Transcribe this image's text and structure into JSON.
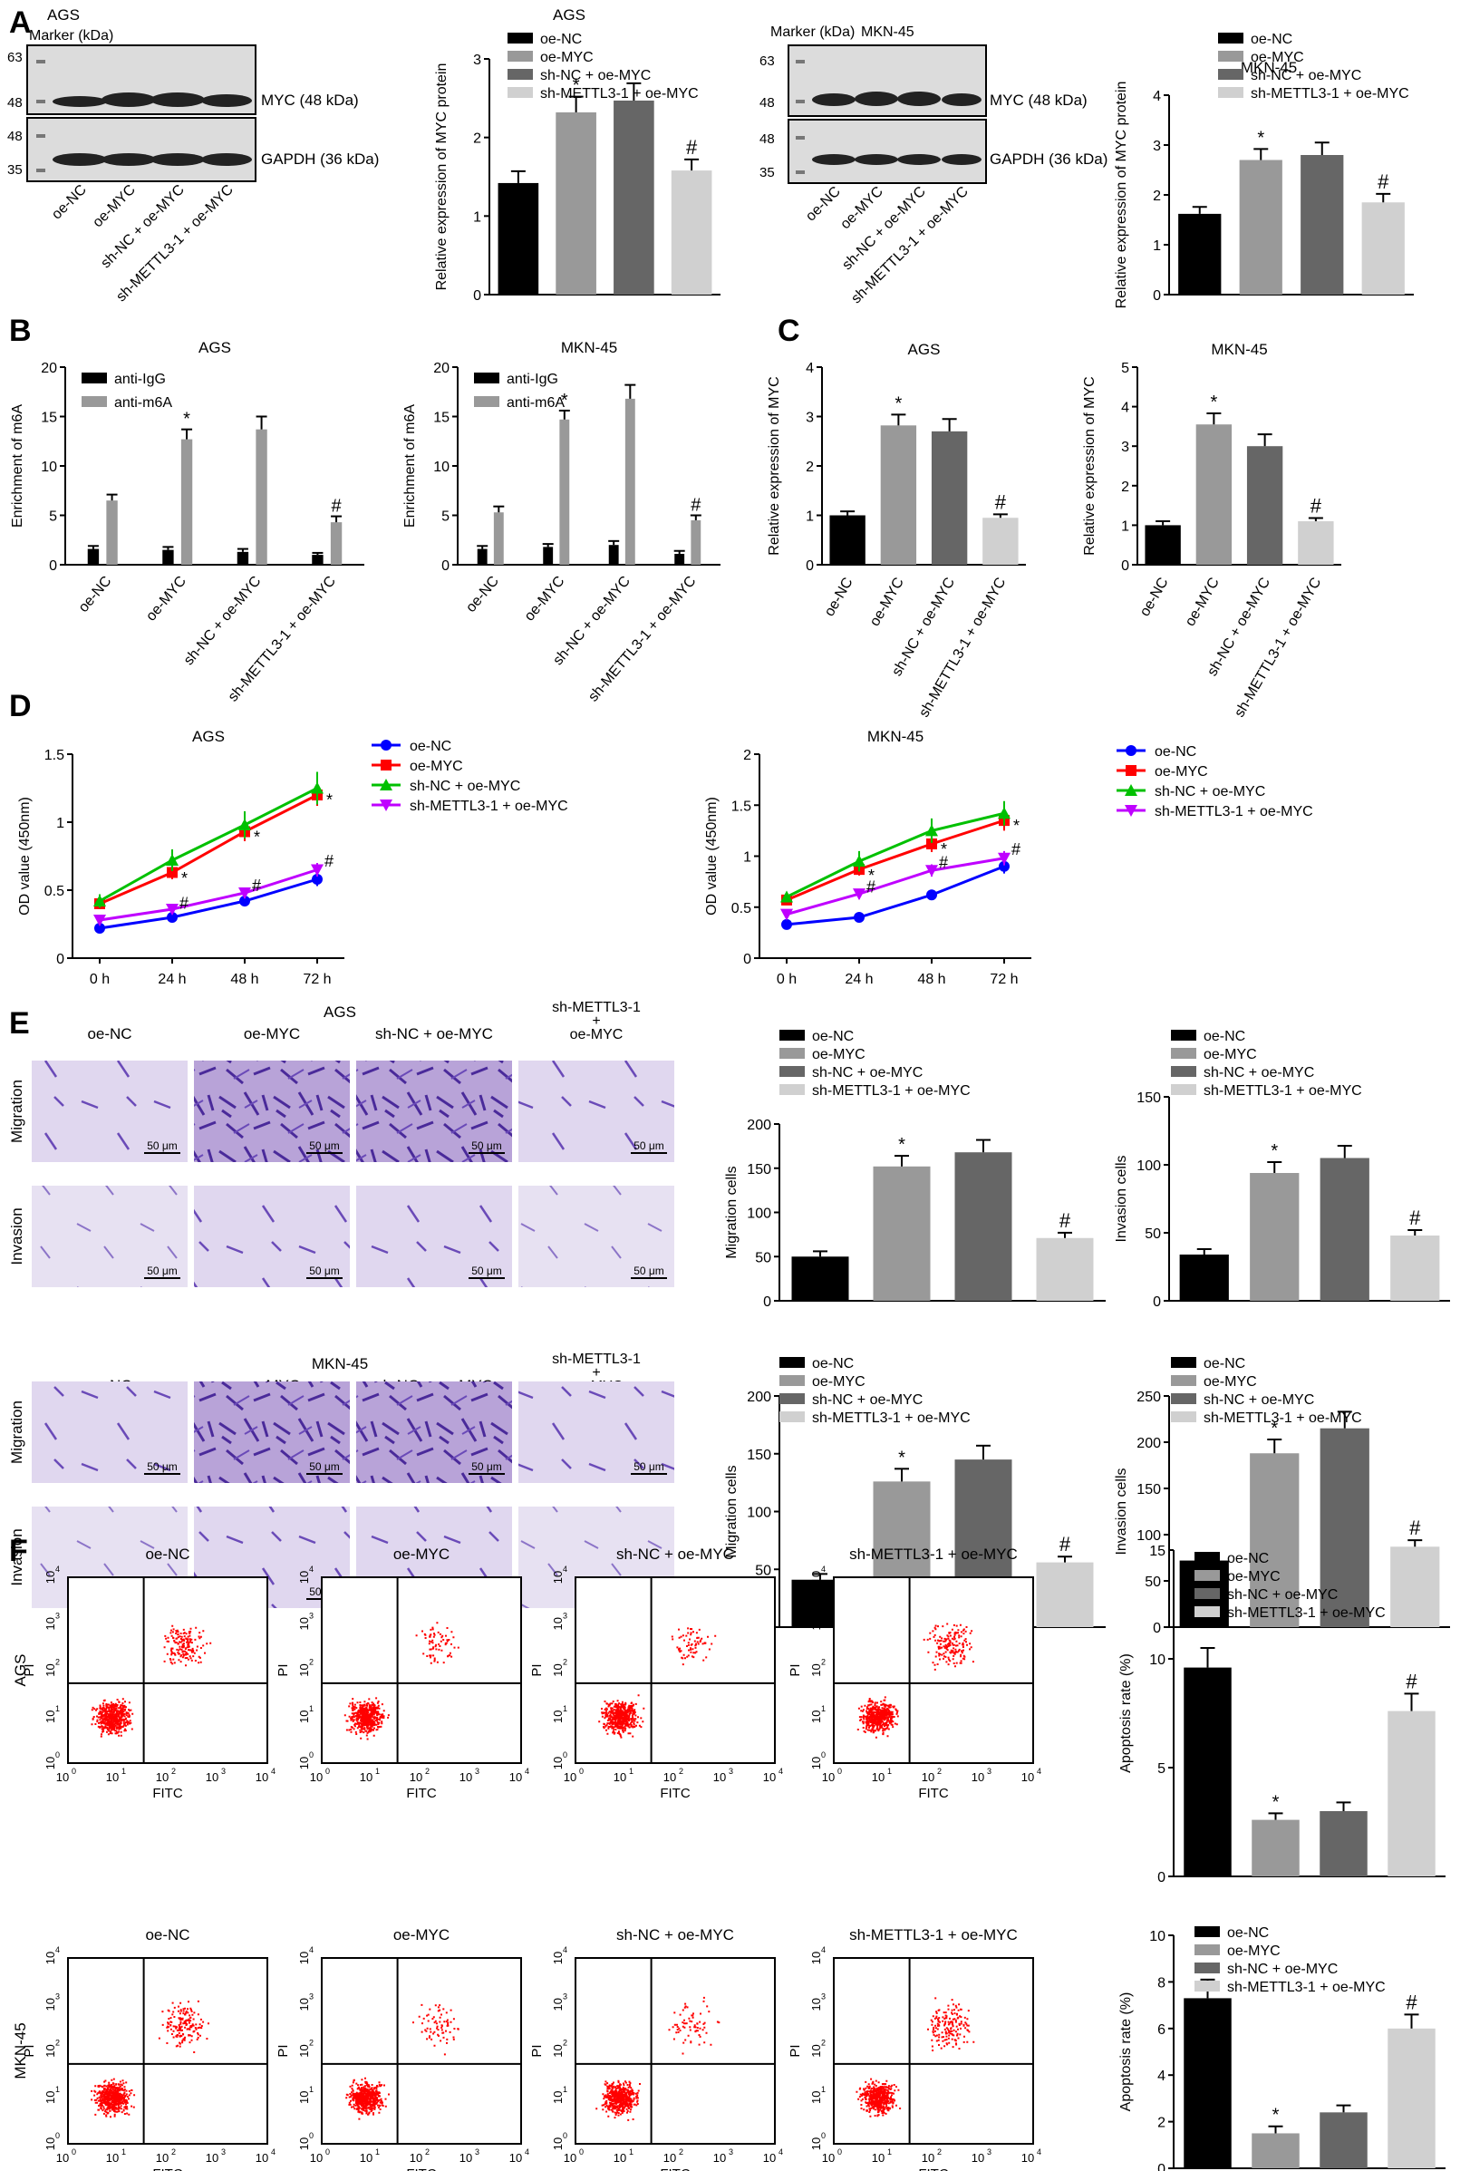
{
  "panel_letters": {
    "A": "A",
    "B": "B",
    "C": "C",
    "D": "D",
    "E": "E",
    "F": "F"
  },
  "groups4": [
    "oe-NC",
    "oe-MYC",
    "sh-NC + oe-MYC",
    "sh-METTL3-1 + oe-MYC"
  ],
  "colors": {
    "black": "#000000",
    "gray1": "#999999",
    "gray2": "#666666",
    "gray3": "#d0d0d0",
    "blot_bg": "#dcdcdc",
    "band": "#222222",
    "flow_dot": "#ff0000",
    "purple": "#6b4bb8",
    "blue": "#0000ff",
    "red": "#ff0000",
    "green": "#00c000",
    "magenta": "#bf00ff"
  },
  "blots": {
    "ags": {
      "cell": "AGS",
      "marker": "Marker (kDa)",
      "m63": "63",
      "m48a": "48",
      "m48b": "48",
      "m35": "35",
      "myc": "MYC (48 kDa)",
      "gapdh": "GAPDH (36 kDa)"
    },
    "mkn": {
      "cell": "MKN-45",
      "marker": "Marker (kDa)",
      "m63": "63",
      "m48a": "48",
      "m48b": "48",
      "m35": "35",
      "myc": "MYC (48 kDa)",
      "gapdh": "GAPDH (36 kDa)"
    },
    "lanes": [
      "oe-NC",
      "oe-MYC",
      "sh-NC + oe-MYC",
      "sh-METTL3-1 + oe-MYC"
    ]
  },
  "imaging": {
    "ags_title": "AGS",
    "mkn_title": "MKN-45",
    "col_labels": [
      "oe-NC",
      "oe-MYC",
      "sh-NC + oe-MYC"
    ],
    "col4_l1": "sh-METTL3-1",
    "col4_l2": "+",
    "col4_l3": "oe-MYC",
    "row_migration": "Migration",
    "row_invasion": "Invasion",
    "scale": "50 μm"
  },
  "flow": {
    "col_titles": [
      "oe-NC",
      "oe-MYC",
      "sh-NC + oe-MYC",
      "sh-METTL3-1 + oe-MYC"
    ],
    "row_labels": [
      "AGS",
      "MKN-45"
    ],
    "xlabel": "FITC",
    "ylabel": "PI",
    "ticks": [
      "10",
      "10",
      "10",
      "10",
      "10"
    ],
    "exps": [
      "0",
      "1",
      "2",
      "3",
      "4"
    ]
  },
  "chart_data": [
    {
      "id": "A1",
      "type": "bar",
      "title": "AGS",
      "ylabel": "Relative expression of MYC protein",
      "categories": [
        "oe-NC",
        "oe-MYC",
        "sh-NC + oe-MYC",
        "sh-METTL3-1 + oe-MYC"
      ],
      "values": [
        1.42,
        2.32,
        2.47,
        1.58
      ],
      "errors": [
        0.15,
        0.2,
        0.22,
        0.14
      ],
      "ylim": [
        0,
        3
      ],
      "yticks": [
        0,
        1,
        2,
        3
      ],
      "marks": [
        "",
        "*",
        "",
        "#"
      ],
      "legend_position": "top-right"
    },
    {
      "id": "A2",
      "type": "bar",
      "title": "MKN-45",
      "ylabel": "Relative expression of MYC protein",
      "categories": [
        "oe-NC",
        "oe-MYC",
        "sh-NC + oe-MYC",
        "sh-METTL3-1 + oe-MYC"
      ],
      "values": [
        1.62,
        2.7,
        2.8,
        1.85
      ],
      "errors": [
        0.14,
        0.22,
        0.25,
        0.17
      ],
      "ylim": [
        0,
        4
      ],
      "yticks": [
        0,
        1,
        2,
        3,
        4
      ],
      "marks": [
        "",
        "*",
        "",
        "#"
      ],
      "legend_position": "top-right"
    },
    {
      "id": "B1",
      "type": "bar",
      "title": "AGS",
      "ylabel": "Enrichment of m6A",
      "categories": [
        "oe-NC",
        "oe-MYC",
        "sh-NC + oe-MYC",
        "sh-METTL3-1 + oe-MYC"
      ],
      "series": [
        {
          "name": "anti-IgG",
          "values": [
            1.6,
            1.5,
            1.3,
            1.0
          ],
          "errors": [
            0.3,
            0.3,
            0.3,
            0.2
          ]
        },
        {
          "name": "anti-m6A",
          "values": [
            6.5,
            12.7,
            13.7,
            4.3
          ],
          "errors": [
            0.6,
            1.0,
            1.3,
            0.6
          ]
        }
      ],
      "ylim": [
        0,
        20
      ],
      "yticks": [
        0,
        5,
        10,
        15,
        20
      ],
      "marks": [
        "",
        "*",
        "",
        "#"
      ],
      "legend_position": "top-left"
    },
    {
      "id": "B2",
      "type": "bar",
      "title": "MKN-45",
      "ylabel": "Enrichment of m6A",
      "categories": [
        "oe-NC",
        "oe-MYC",
        "sh-NC + oe-MYC",
        "sh-METTL3-1 + oe-MYC"
      ],
      "series": [
        {
          "name": "anti-IgG",
          "values": [
            1.6,
            1.8,
            2.0,
            1.1
          ],
          "errors": [
            0.3,
            0.3,
            0.4,
            0.3
          ]
        },
        {
          "name": "anti-m6A",
          "values": [
            5.3,
            14.7,
            16.8,
            4.5
          ],
          "errors": [
            0.6,
            0.9,
            1.4,
            0.5
          ]
        }
      ],
      "ylim": [
        0,
        20
      ],
      "yticks": [
        0,
        5,
        10,
        15,
        20
      ],
      "marks": [
        "",
        "*",
        "",
        "#"
      ],
      "legend_position": "top-left"
    },
    {
      "id": "C1",
      "type": "bar",
      "title": "AGS",
      "ylabel": "Relative expression of MYC",
      "categories": [
        "oe-NC",
        "oe-MYC",
        "sh-NC + oe-MYC",
        "sh-METTL3-1 + oe-MYC"
      ],
      "values": [
        1.0,
        2.82,
        2.7,
        0.95
      ],
      "errors": [
        0.08,
        0.22,
        0.25,
        0.07
      ],
      "ylim": [
        0,
        4
      ],
      "yticks": [
        0,
        1,
        2,
        3,
        4
      ],
      "marks": [
        "",
        "*",
        "",
        "#"
      ]
    },
    {
      "id": "C2",
      "type": "bar",
      "title": "MKN-45",
      "ylabel": "Relative expression of MYC",
      "categories": [
        "oe-NC",
        "oe-MYC",
        "sh-NC + oe-MYC",
        "sh-METTL3-1 + oe-MYC"
      ],
      "values": [
        1.0,
        3.55,
        3.0,
        1.1
      ],
      "errors": [
        0.1,
        0.28,
        0.3,
        0.08
      ],
      "ylim": [
        0,
        5
      ],
      "yticks": [
        0,
        1,
        2,
        3,
        4,
        5
      ],
      "marks": [
        "",
        "*",
        "",
        "#"
      ]
    },
    {
      "id": "D1",
      "type": "line",
      "title": "AGS",
      "ylabel": "OD value (450nm)",
      "x": [
        "0 h",
        "24 h",
        "48 h",
        "72 h"
      ],
      "series": [
        {
          "name": "oe-NC",
          "values": [
            0.22,
            0.3,
            0.42,
            0.58
          ],
          "errors": [
            0.02,
            0.03,
            0.04,
            0.05
          ]
        },
        {
          "name": "oe-MYC",
          "values": [
            0.4,
            0.63,
            0.93,
            1.2
          ],
          "errors": [
            0.04,
            0.05,
            0.07,
            0.08
          ]
        },
        {
          "name": "sh-NC + oe-MYC",
          "values": [
            0.42,
            0.72,
            0.98,
            1.25
          ],
          "errors": [
            0.05,
            0.08,
            0.1,
            0.12
          ]
        },
        {
          "name": "sh-METTL3-1 + oe-MYC",
          "values": [
            0.28,
            0.36,
            0.48,
            0.65
          ],
          "errors": [
            0.03,
            0.03,
            0.04,
            0.05
          ]
        }
      ],
      "ylim": [
        0,
        1.5
      ],
      "yticks": [
        0,
        0.5,
        1.0,
        1.5
      ],
      "legend_position": "right"
    },
    {
      "id": "D2",
      "type": "line",
      "title": "MKN-45",
      "ylabel": "OD value (450nm)",
      "x": [
        "0 h",
        "24 h",
        "48 h",
        "72 h"
      ],
      "series": [
        {
          "name": "oe-NC",
          "values": [
            0.33,
            0.4,
            0.62,
            0.9
          ],
          "errors": [
            0.03,
            0.03,
            0.05,
            0.07
          ]
        },
        {
          "name": "oe-MYC",
          "values": [
            0.57,
            0.87,
            1.12,
            1.35
          ],
          "errors": [
            0.04,
            0.06,
            0.08,
            0.1
          ]
        },
        {
          "name": "sh-NC + oe-MYC",
          "values": [
            0.6,
            0.95,
            1.25,
            1.42
          ],
          "errors": [
            0.05,
            0.1,
            0.12,
            0.12
          ]
        },
        {
          "name": "sh-METTL3-1 + oe-MYC",
          "values": [
            0.43,
            0.63,
            0.86,
            0.98
          ],
          "errors": [
            0.03,
            0.05,
            0.06,
            0.07
          ]
        }
      ],
      "ylim": [
        0,
        2.0
      ],
      "yticks": [
        0,
        0.5,
        1.0,
        1.5,
        2.0
      ],
      "legend_position": "right"
    },
    {
      "id": "E1",
      "type": "bar",
      "ylabel": "Migration cells",
      "categories": [
        "oe-NC",
        "oe-MYC",
        "sh-NC + oe-MYC",
        "sh-METTL3-1 + oe-MYC"
      ],
      "values": [
        50,
        152,
        168,
        71
      ],
      "errors": [
        6,
        12,
        14,
        6
      ],
      "ylim": [
        0,
        200
      ],
      "yticks": [
        0,
        50,
        100,
        150,
        200
      ],
      "marks": [
        "",
        "*",
        "",
        "#"
      ],
      "legend_position": "top"
    },
    {
      "id": "E2",
      "type": "bar",
      "ylabel": "Invasion cells",
      "categories": [
        "oe-NC",
        "oe-MYC",
        "sh-NC + oe-MYC",
        "sh-METTL3-1 + oe-MYC"
      ],
      "values": [
        34,
        94,
        105,
        48
      ],
      "errors": [
        4,
        8,
        9,
        4
      ],
      "ylim": [
        0,
        150
      ],
      "yticks": [
        0,
        50,
        100,
        150
      ],
      "marks": [
        "",
        "*",
        "",
        "#"
      ],
      "legend_position": "top"
    },
    {
      "id": "E3",
      "type": "bar",
      "ylabel": "Migration cells",
      "categories": [
        "oe-NC",
        "oe-MYC",
        "sh-NC + oe-MYC",
        "sh-METTL3-1 + oe-MYC"
      ],
      "values": [
        41,
        126,
        145,
        56
      ],
      "errors": [
        5,
        11,
        12,
        5
      ],
      "ylim": [
        0,
        200
      ],
      "yticks": [
        0,
        50,
        100,
        150,
        200
      ],
      "marks": [
        "",
        "*",
        "",
        "#"
      ],
      "legend_position": "top"
    },
    {
      "id": "E4",
      "type": "bar",
      "ylabel": "Invasion cells",
      "categories": [
        "oe-NC",
        "oe-MYC",
        "sh-NC + oe-MYC",
        "sh-METTL3-1 + oe-MYC"
      ],
      "values": [
        72,
        188,
        215,
        87
      ],
      "errors": [
        8,
        15,
        18,
        7
      ],
      "ylim": [
        0,
        250
      ],
      "yticks": [
        0,
        50,
        100,
        150,
        200,
        250
      ],
      "marks": [
        "",
        "*",
        "",
        "#"
      ],
      "legend_position": "top"
    },
    {
      "id": "F1",
      "type": "bar",
      "ylabel": "Apoptosis rate (%)",
      "categories": [
        "oe-NC",
        "oe-MYC",
        "sh-NC + oe-MYC",
        "sh-METTL3-1 + oe-MYC"
      ],
      "values": [
        9.6,
        2.6,
        3.0,
        7.6
      ],
      "errors": [
        0.9,
        0.3,
        0.4,
        0.8
      ],
      "ylim": [
        0,
        15
      ],
      "yticks": [
        0,
        5,
        10,
        15
      ],
      "marks": [
        "",
        "*",
        "",
        "#"
      ],
      "legend_position": "top"
    },
    {
      "id": "F2",
      "type": "bar",
      "ylabel": "Apoptosis rate (%)",
      "categories": [
        "oe-NC",
        "oe-MYC",
        "sh-NC + oe-MYC",
        "sh-METTL3-1 + oe-MYC"
      ],
      "values": [
        7.3,
        1.5,
        2.4,
        6.0
      ],
      "errors": [
        0.8,
        0.3,
        0.3,
        0.6
      ],
      "ylim": [
        0,
        10
      ],
      "yticks": [
        0,
        2,
        4,
        6,
        8,
        10
      ],
      "marks": [
        "",
        "*",
        "",
        "#"
      ],
      "legend_position": "top"
    }
  ]
}
